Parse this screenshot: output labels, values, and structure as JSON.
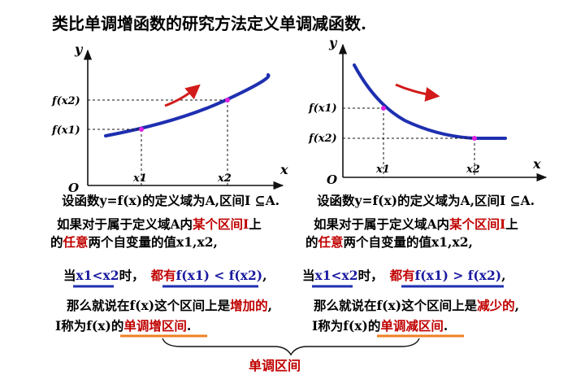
{
  "title": "类比单调增函数的研究方法定义单调减函数.",
  "left": {
    "y_axis": "y",
    "x_axis": "x",
    "origin": "O",
    "x1": "x1",
    "x2": "x2",
    "fx1": "f(x1)",
    "fx2": "f(x2)",
    "line1": "设函数y=f(x)的定义域为A,区间I ⊆A.",
    "line2_a": "如果对于属于定义域A内",
    "line2_b": "某个区间I",
    "line2_c": "上",
    "line3_a": "的",
    "line3_b": "任意",
    "line3_c": "两个自变量的值x1,x2,",
    "when": "当",
    "cond": "x1<x2",
    "when_tail": "时，",
    "all_have": "都有",
    "result": "f(x1) < f(x2)",
    "result_tail": ",",
    "then_a": "那么就说在f(x)这个区间上是",
    "then_b": "增加的",
    "then_c": ",",
    "named_a": "I称为f(x)的",
    "named_b": "单调增区间",
    "named_c": "."
  },
  "right": {
    "y_axis": "y",
    "x_axis": "x",
    "origin": "O",
    "x1": "x1",
    "x2": "x2",
    "fx1": "f(x1)",
    "fx2": "f(x2)",
    "line1": "设函数y=f(x)的定义域为A,区间I ⊆A.",
    "line2_a": "如果对于属于定义域A内",
    "line2_b": "某个区间I",
    "line2_c": "上",
    "line3_a": "的",
    "line3_b": "任意",
    "line3_c": "两个自变量的值x1,x2,",
    "when": "当",
    "cond": "x1<x2",
    "when_tail": "时，",
    "all_have": "都有",
    "result": "f(x1) > f(x2)",
    "result_tail": ",",
    "then_a": "那么就说在f(x)这个区间上是",
    "then_b": "减少的",
    "then_c": ",",
    "named_a": "I称为f(x)的",
    "named_b": "单调减区间",
    "named_c": "."
  },
  "brace_label": "单调区间",
  "colors": {
    "curve": "#1e2fb0",
    "point": "#e020e0",
    "arrow": "#d21a1a",
    "emphasis": "#c00000",
    "cond": "#1a1aa0",
    "underline_blue": "#1e2fb0",
    "underline_orange": "#f08020"
  }
}
